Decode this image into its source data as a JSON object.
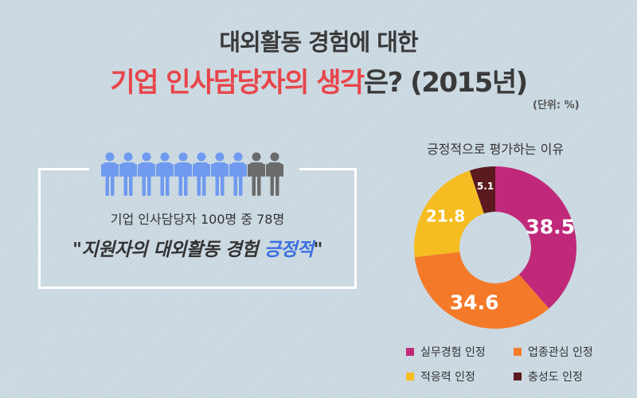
{
  "header": {
    "line1": "대외활동 경험에 대한",
    "line2_highlight": "기업 인사담당자의 생각",
    "line2_rest": "은? (2015년)",
    "unit": "(단위: %)"
  },
  "summary": {
    "line1": "기업 인사담당자 100명 중 78명",
    "quote_part1": "\"지원자의 대외활동 경험 ",
    "quote_highlight": "긍정적",
    "quote_part2": "\"",
    "positive_count": 78,
    "total_count": 100,
    "icon_count": 10,
    "icon_active": 8,
    "colors": {
      "active": "#6f9af0",
      "inactive": "#6b6b6b"
    }
  },
  "chart_data": {
    "type": "pie",
    "title": "긍정적으로 평가하는 이유",
    "categories": [
      "실무경험 인정",
      "업종관심 인정",
      "적응력 인정",
      "충성도 인정"
    ],
    "values": [
      38.5,
      34.6,
      21.8,
      5.1
    ],
    "labels": [
      "38.5",
      "34.6",
      "21.8",
      "5.1"
    ],
    "colors": [
      "#c0297a",
      "#f47a2a",
      "#f5bd21",
      "#5a1a1e"
    ],
    "legend_position": "bottom"
  }
}
